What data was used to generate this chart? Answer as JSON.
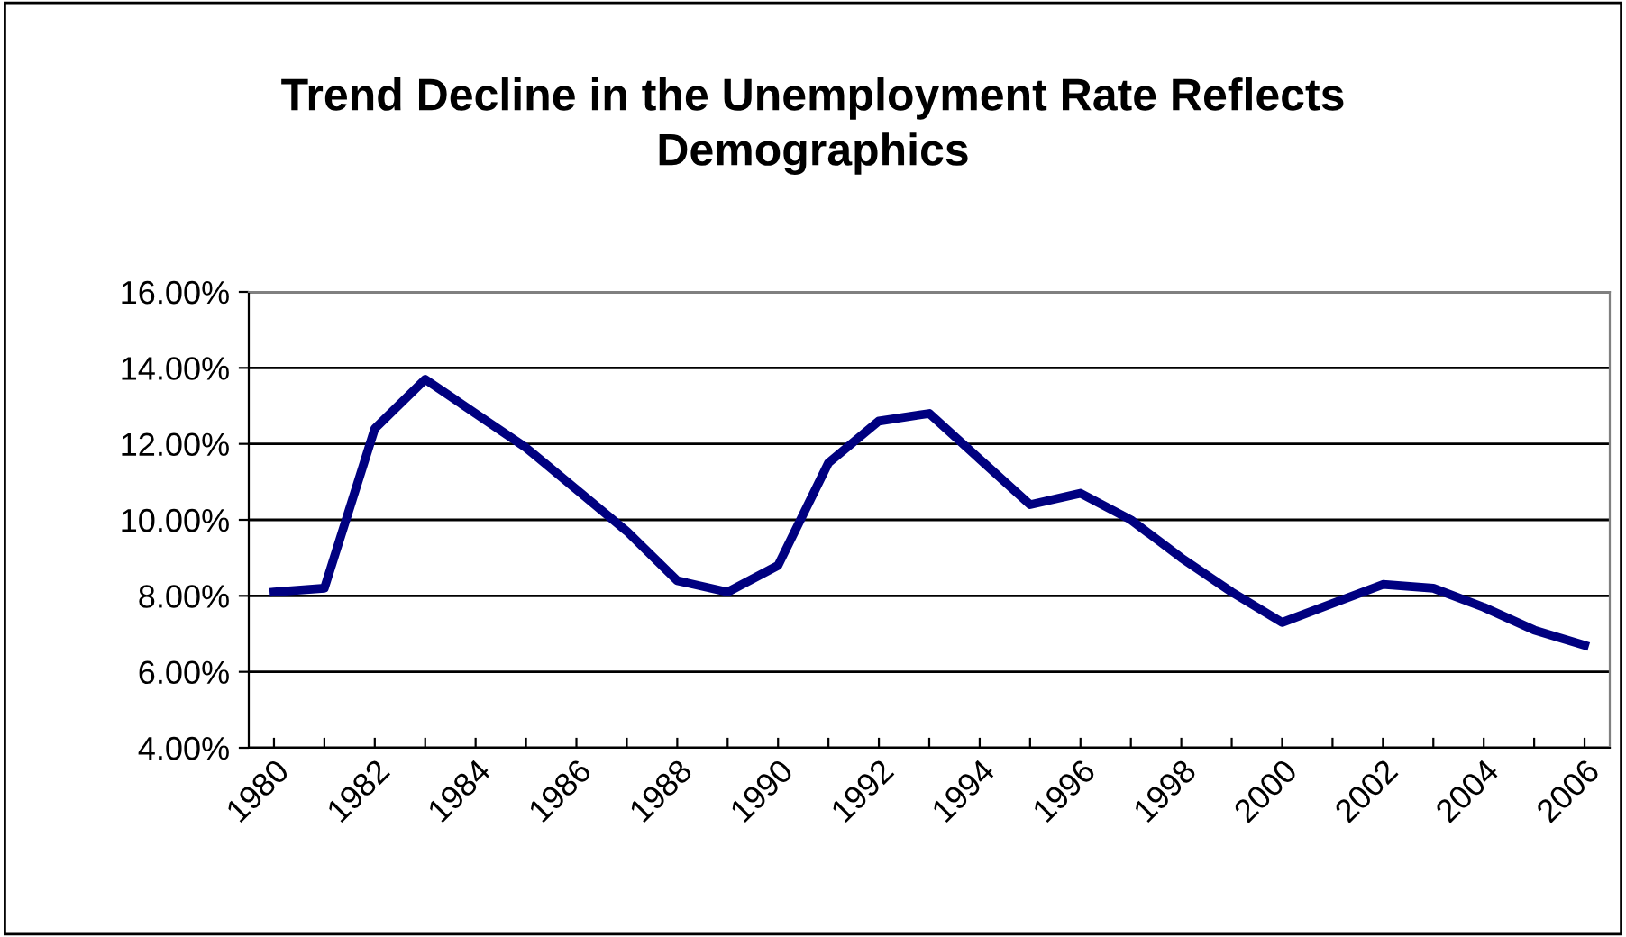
{
  "chart_data": {
    "type": "line",
    "title": "Trend Decline in the Unemployment Rate Reflects\nDemographics",
    "categories": [
      "1980",
      null,
      "1982",
      null,
      "1984",
      null,
      "1986",
      null,
      "1988",
      null,
      "1990",
      null,
      "1992",
      null,
      "1994",
      null,
      "1996",
      null,
      "1998",
      null,
      "2000",
      null,
      "2002",
      null,
      "2004",
      null,
      "2006"
    ],
    "series": [
      {
        "color": "#000080",
        "values": [
          8.1,
          8.2,
          12.4,
          13.7,
          12.8,
          11.9,
          10.8,
          9.7,
          8.4,
          8.1,
          8.8,
          11.5,
          12.6,
          12.8,
          11.6,
          10.4,
          10.7,
          10.0,
          9.0,
          8.1,
          7.3,
          7.8,
          8.3,
          8.2,
          7.7,
          7.1,
          6.7
        ]
      }
    ],
    "ylim": [
      4,
      16
    ],
    "yticks": [
      {
        "value": 4,
        "label": "4.00%"
      },
      {
        "value": 6,
        "label": "6.00%"
      },
      {
        "value": 8,
        "label": "8.00%"
      },
      {
        "value": 10,
        "label": "10.00%"
      },
      {
        "value": 12,
        "label": "12.00%"
      },
      {
        "value": 14,
        "label": "14.00%"
      },
      {
        "value": 16,
        "label": "16.00%"
      }
    ],
    "grid": "y",
    "legend": false,
    "marker": "none",
    "line_style": "solid"
  }
}
